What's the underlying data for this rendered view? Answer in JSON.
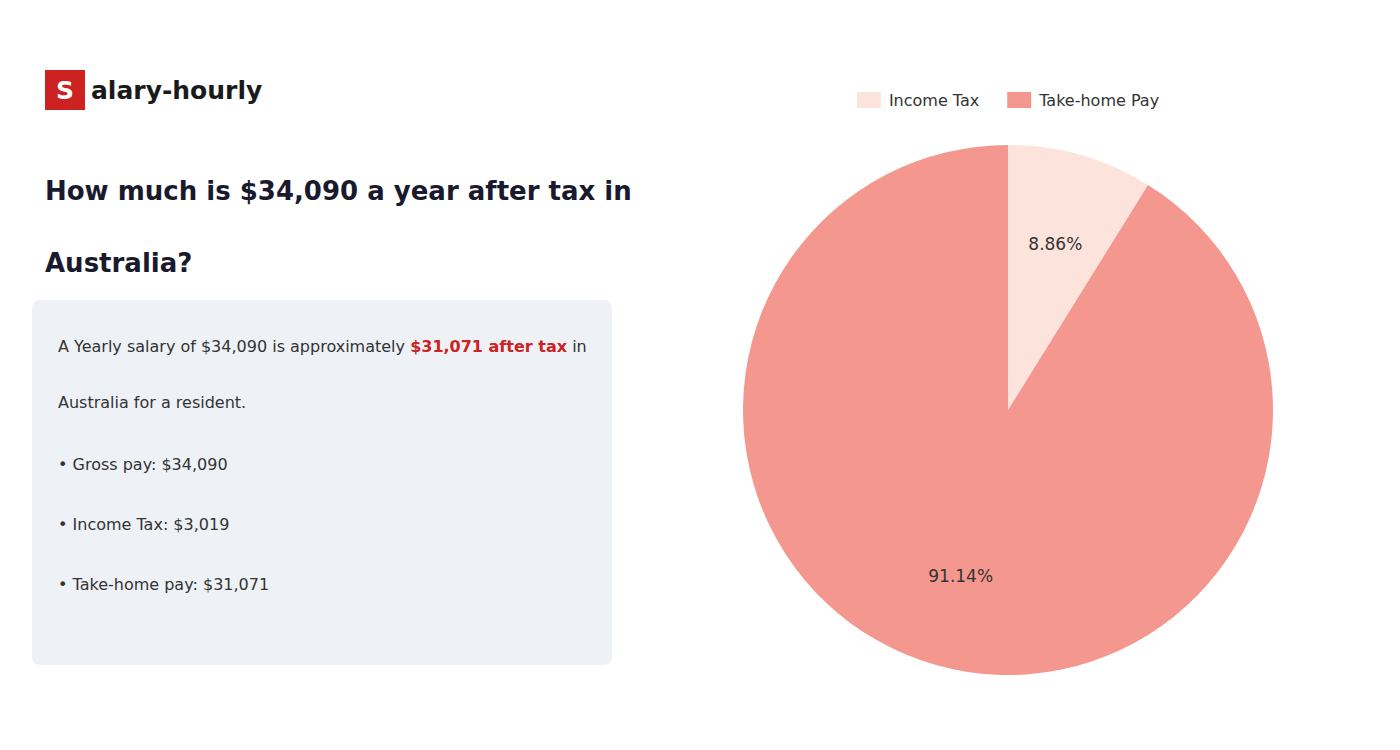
{
  "chart_data": {
    "type": "pie",
    "title": [
      "How much is $34,090 a year after tax in",
      "Australia?"
    ],
    "annotations": [
      {
        "text": "S",
        "color": "#cc2222"
      },
      {
        "text": "alary-hourly"
      },
      {
        "text": "A Yearly salary of $34,090 is approximately "
      },
      {
        "text": "$31,071 after tax",
        "color": "#cc2222"
      },
      {
        "text": " in"
      },
      {
        "text": "Australia for a resident."
      },
      {
        "text": "• Gross pay: $34,090"
      },
      {
        "text": "• Income Tax: $3,019"
      },
      {
        "text": "• Take-home pay: $31,071"
      }
    ],
    "categories": [
      "Income Tax",
      "Take-home Pay"
    ],
    "values": [
      8.86,
      91.14
    ],
    "value_labels": [
      "8.86%",
      "91.14%"
    ],
    "colors": [
      "#fce4dc",
      "#f4978e"
    ],
    "data_labels": true,
    "legend": "top"
  }
}
